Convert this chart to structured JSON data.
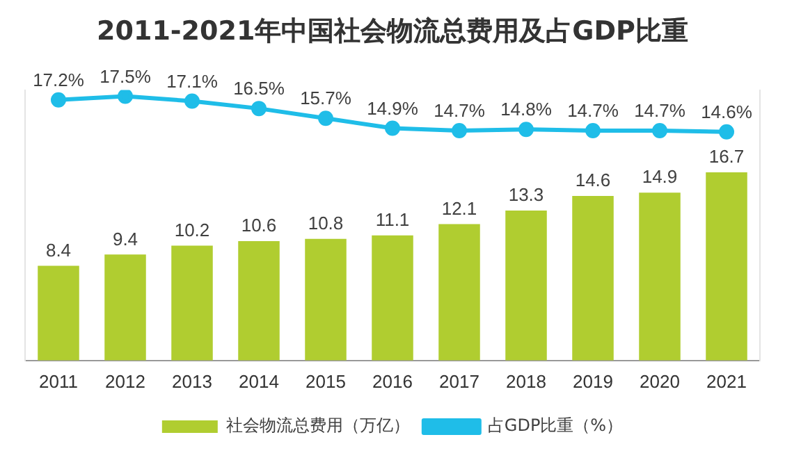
{
  "chart_data": {
    "type": "bar",
    "title": "2011-2021年中国社会物流总费用及占GDP比重",
    "categories": [
      "2011",
      "2012",
      "2013",
      "2014",
      "2015",
      "2016",
      "2017",
      "2018",
      "2019",
      "2020",
      "2021"
    ],
    "ylim": [
      0,
      24
    ],
    "y2lim": [
      -4,
      18
    ],
    "series": [
      {
        "name": "社会物流总费用（万亿）",
        "color": "#b0cd30",
        "values": [
          8.4,
          9.4,
          10.2,
          10.6,
          10.8,
          11.1,
          12.1,
          13.3,
          14.6,
          14.9,
          16.7
        ]
      },
      {
        "name": "占GDP比重（%）",
        "type": "line",
        "axis": "y2",
        "color": "#1fbde8",
        "marker": "circle",
        "values": [
          17.2,
          17.5,
          17.1,
          16.5,
          15.7,
          14.9,
          14.7,
          14.8,
          14.7,
          14.7,
          14.6
        ],
        "value_labels": [
          "17.2%",
          "17.5%",
          "17.1%",
          "16.5%",
          "15.7%",
          "14.9%",
          "14.7%",
          "14.8%",
          "14.7%",
          "14.7%",
          "14.6%"
        ]
      }
    ],
    "data_labels": true,
    "legend": "bottom",
    "grid": false
  }
}
